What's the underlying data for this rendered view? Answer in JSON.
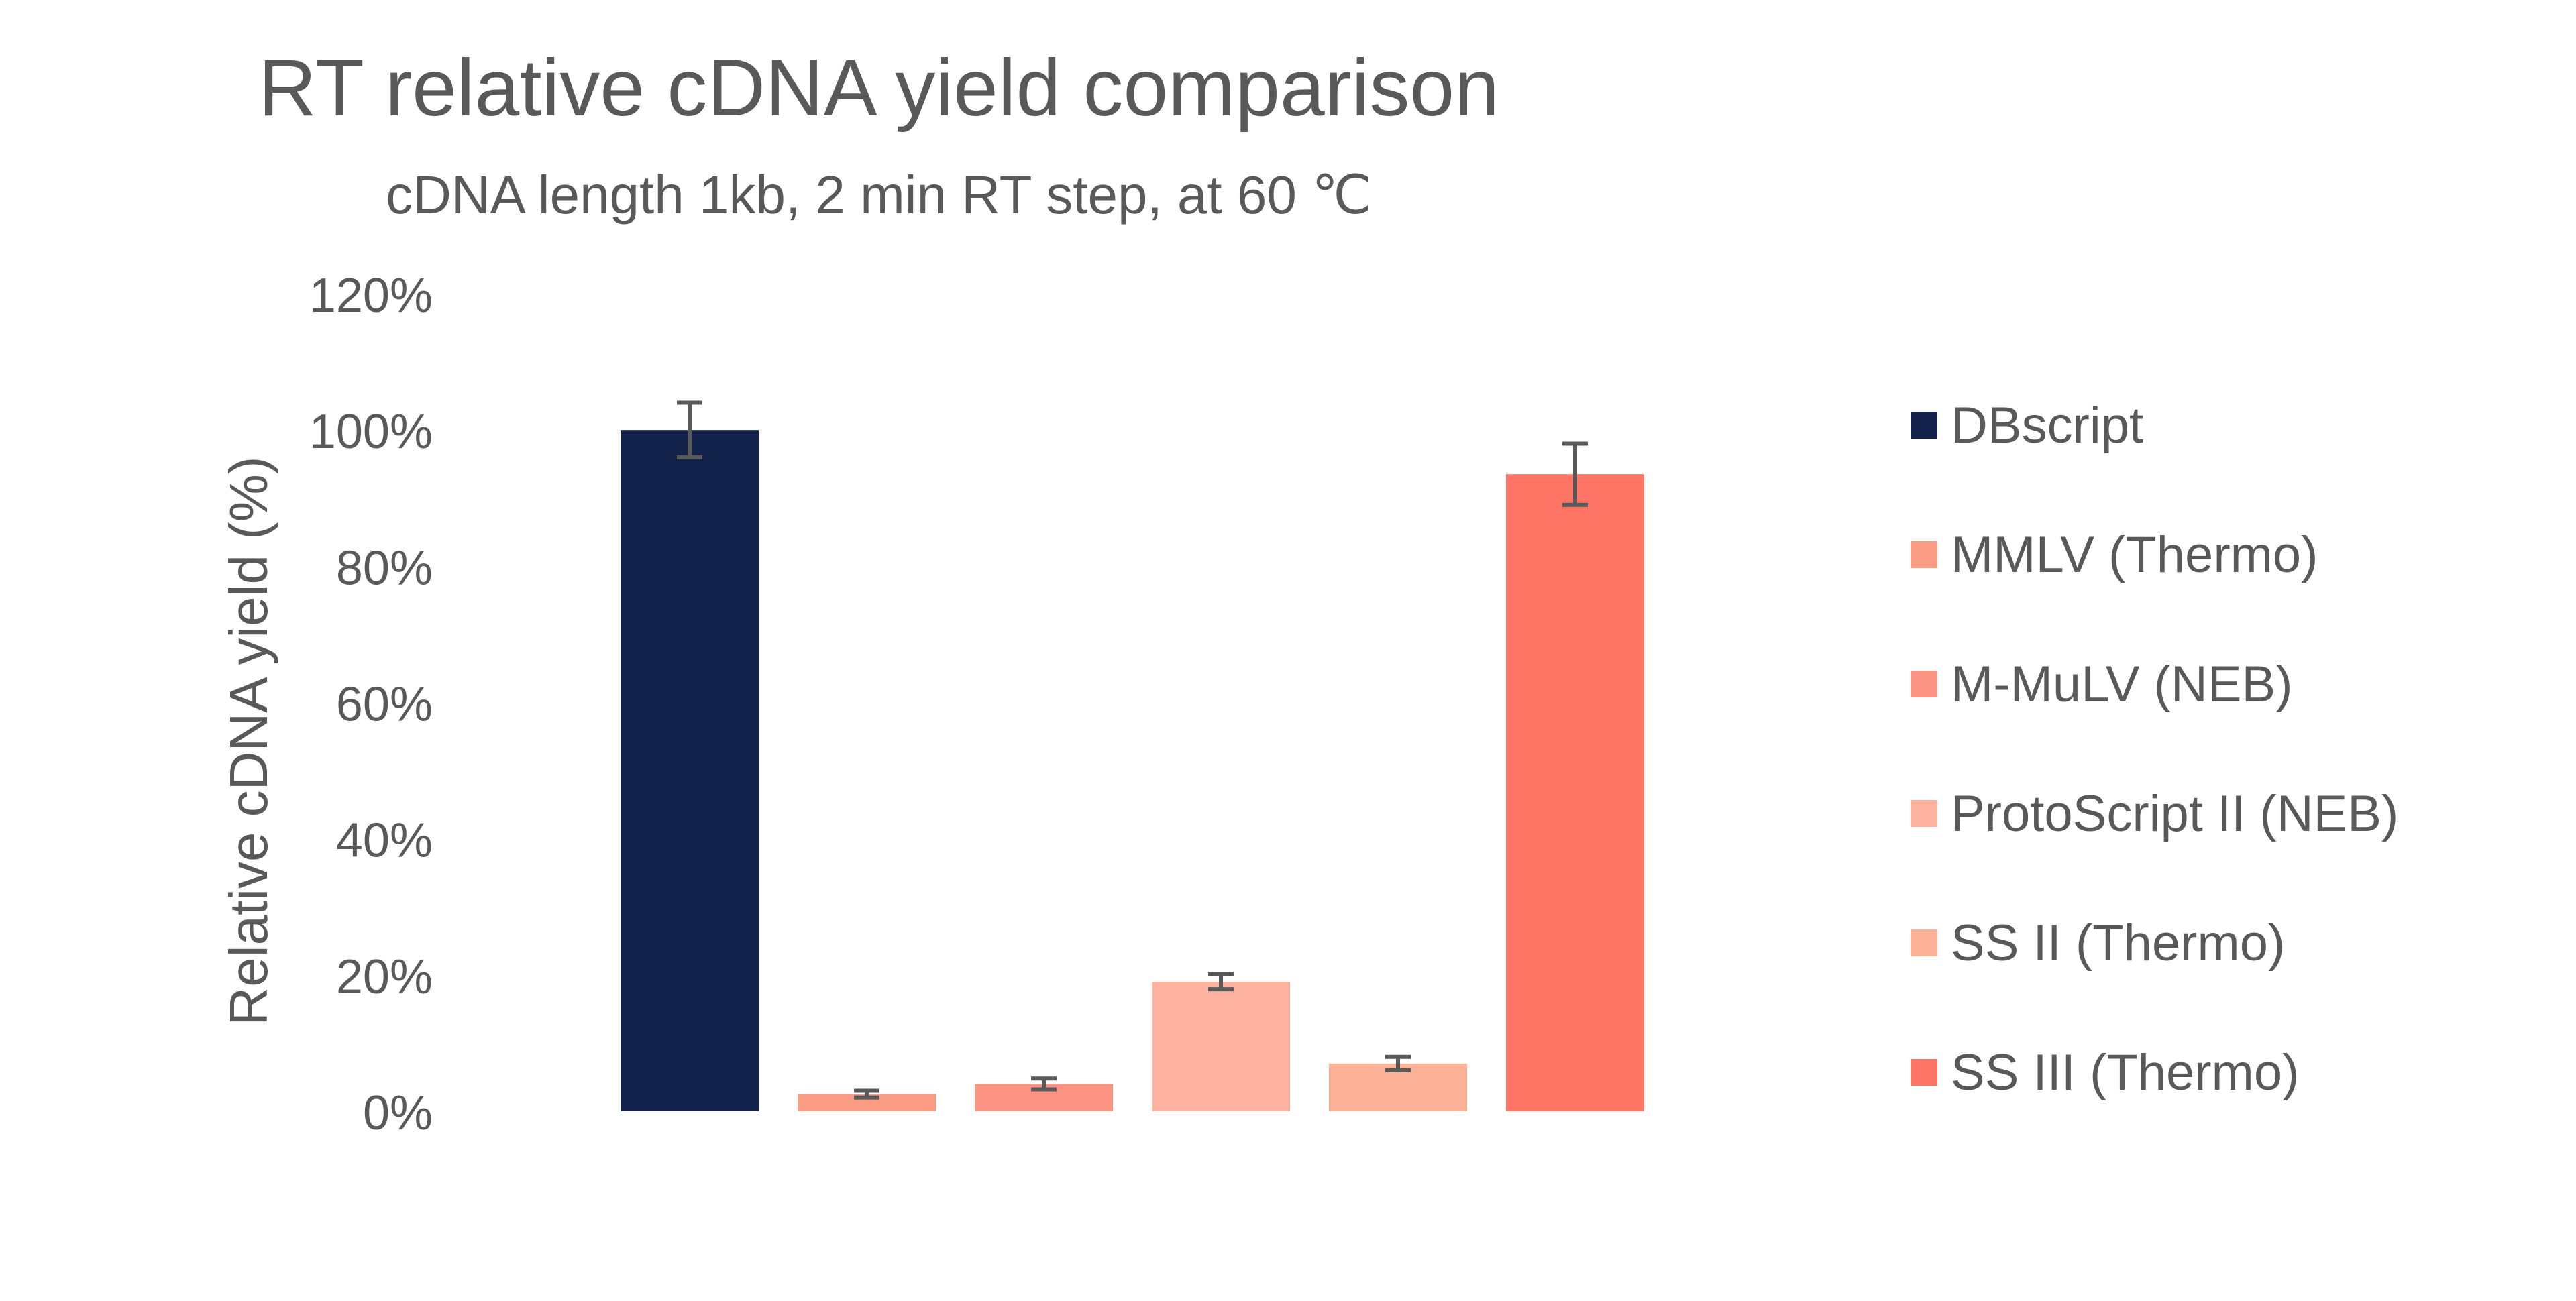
{
  "chart_data": {
    "type": "bar",
    "title": "RT relative cDNA yield comparison",
    "subtitle": "cDNA length 1kb, 2 min RT step, at 60 ℃",
    "ylabel": "Relative cDNA yield (%)",
    "xlabel": "",
    "ylim": [
      0,
      120
    ],
    "yticks": [
      0,
      20,
      40,
      60,
      80,
      100,
      120
    ],
    "ytick_suffix": "%",
    "grid": false,
    "legend_position": "right",
    "series": [
      {
        "name": "DBscript",
        "value": 100,
        "error": 4,
        "color": "#12224a"
      },
      {
        "name": "MMLV (Thermo)",
        "value": 2.5,
        "error": 0.5,
        "color": "#fb9d85"
      },
      {
        "name": "M-MuLV (NEB)",
        "value": 4,
        "error": 0.8,
        "color": "#fb9483"
      },
      {
        "name": "ProtoScript II (NEB)",
        "value": 19,
        "error": 1.1,
        "color": "#fdb3a0"
      },
      {
        "name": "SS II (Thermo)",
        "value": 7,
        "error": 1,
        "color": "#fdb196"
      },
      {
        "name": "SS III (Thermo)",
        "value": 93.5,
        "error": 4.5,
        "color": "#fe7565"
      }
    ],
    "errorbar_color": "#595959"
  }
}
